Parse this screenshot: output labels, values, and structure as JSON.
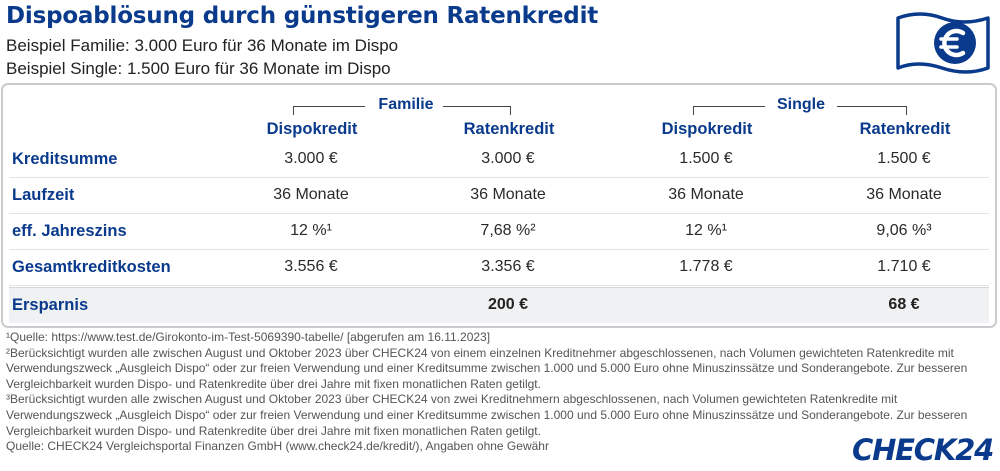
{
  "title": "Dispoablösung durch günstigeren Ratenkredit",
  "subtitles": [
    "Beispiel Familie: 3.000 Euro für 36 Monate im Dispo",
    "Beispiel Single: 1.500 Euro für 36 Monate im Dispo"
  ],
  "icon": "euro-banknote-icon",
  "table": {
    "groups": [
      "Familie",
      "Single"
    ],
    "columns": [
      "Dispokredit",
      "Ratenkredit",
      "Dispokredit",
      "Ratenkredit"
    ],
    "rows": [
      {
        "label": "Kreditsumme",
        "values": [
          "3.000 €",
          "3.000 €",
          "1.500 €",
          "1.500 €"
        ]
      },
      {
        "label": "Laufzeit",
        "values": [
          "36 Monate",
          "36 Monate",
          "36 Monate",
          "36 Monate"
        ]
      },
      {
        "label": "eff. Jahreszins",
        "values": [
          "12 %¹",
          "7,68 %²",
          "12 %¹",
          "9,06 %³"
        ]
      },
      {
        "label": "Gesamtkreditkosten",
        "values": [
          "3.556 €",
          "3.356 €",
          "1.778 €",
          "1.710 €"
        ]
      }
    ],
    "savings": {
      "label": "Ersparnis",
      "family": "200 €",
      "single": "68 €"
    }
  },
  "footnotes": [
    "¹Quelle: https://www.test.de/Girokonto-im-Test-5069390-tabelle/ [abgerufen am 16.11.2023]",
    "²Berücksichtigt wurden alle zwischen August und Oktober 2023 über CHECK24 von einem einzelnen Kreditnehmer abgeschlossenen, nach Volumen gewichteten Ratenkredite mit Verwendungszweck „Ausgleich Dispo“ oder zur freien Verwendung und einer Kreditsumme zwischen 1.000 und 5.000 Euro ohne Minuszinssätze und Sonderangebote. Zur besseren Vergleichbarkeit wurden Dispo- und Ratenkredite über drei Jahre mit fixen monatlichen Raten getilgt.",
    "³Berücksichtigt wurden alle zwischen August und Oktober 2023 über CHECK24 von zwei Kreditnehmern abgeschlossenen, nach Volumen gewichteten Ratenkredite mit Verwendungszweck „Ausgleich Dispo“ oder zur freien Verwendung und einer Kreditsumme zwischen 1.000 und 5.000 Euro ohne Minuszinssätze und Sonderangebote. Zur besseren Vergleichbarkeit wurden Dispo- und Ratenkredite über drei Jahre mit fixen monatlichen Raten getilgt.",
    "Quelle: CHECK24 Vergleichsportal Finanzen GmbH (www.check24.de/kredit/), Angaben ohne Gewähr"
  ],
  "logo": {
    "text": "CHECK",
    "number": "24"
  },
  "colors": {
    "accent": "#0a3a8c",
    "border": "#c9cbcf",
    "savings_bg": "#f0f1f2"
  }
}
